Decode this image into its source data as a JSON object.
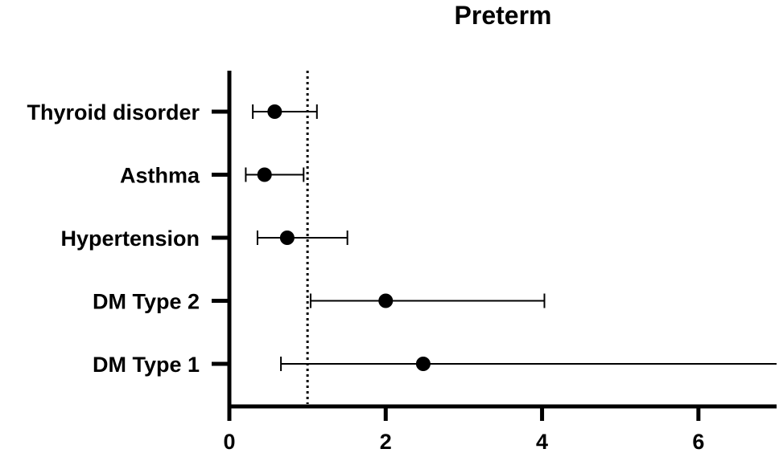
{
  "chart_data": {
    "type": "scatter",
    "title": "Preterm",
    "xlabel": "",
    "ylabel": "",
    "xlim": [
      0,
      7
    ],
    "x_ticks": [
      0,
      2,
      4,
      6
    ],
    "x_tick_labels": [
      "0",
      "2",
      "4",
      "6"
    ],
    "reference_line_x": 1,
    "grid": false,
    "categories": [
      "Thyroid disorder",
      "Asthma",
      "Hypertension",
      "DM Type 2",
      "DM Type 1"
    ],
    "points": [
      {
        "label": "Thyroid disorder",
        "estimate": 0.58,
        "lower": 0.3,
        "upper": 1.12
      },
      {
        "label": "Asthma",
        "estimate": 0.45,
        "lower": 0.21,
        "upper": 0.95
      },
      {
        "label": "Hypertension",
        "estimate": 0.74,
        "lower": 0.36,
        "upper": 1.51
      },
      {
        "label": "DM Type 2",
        "estimate": 2.0,
        "lower": 1.04,
        "upper": 4.03
      },
      {
        "label": "DM Type 1",
        "estimate": 2.48,
        "lower": 0.66,
        "upper": 7.0
      }
    ]
  }
}
